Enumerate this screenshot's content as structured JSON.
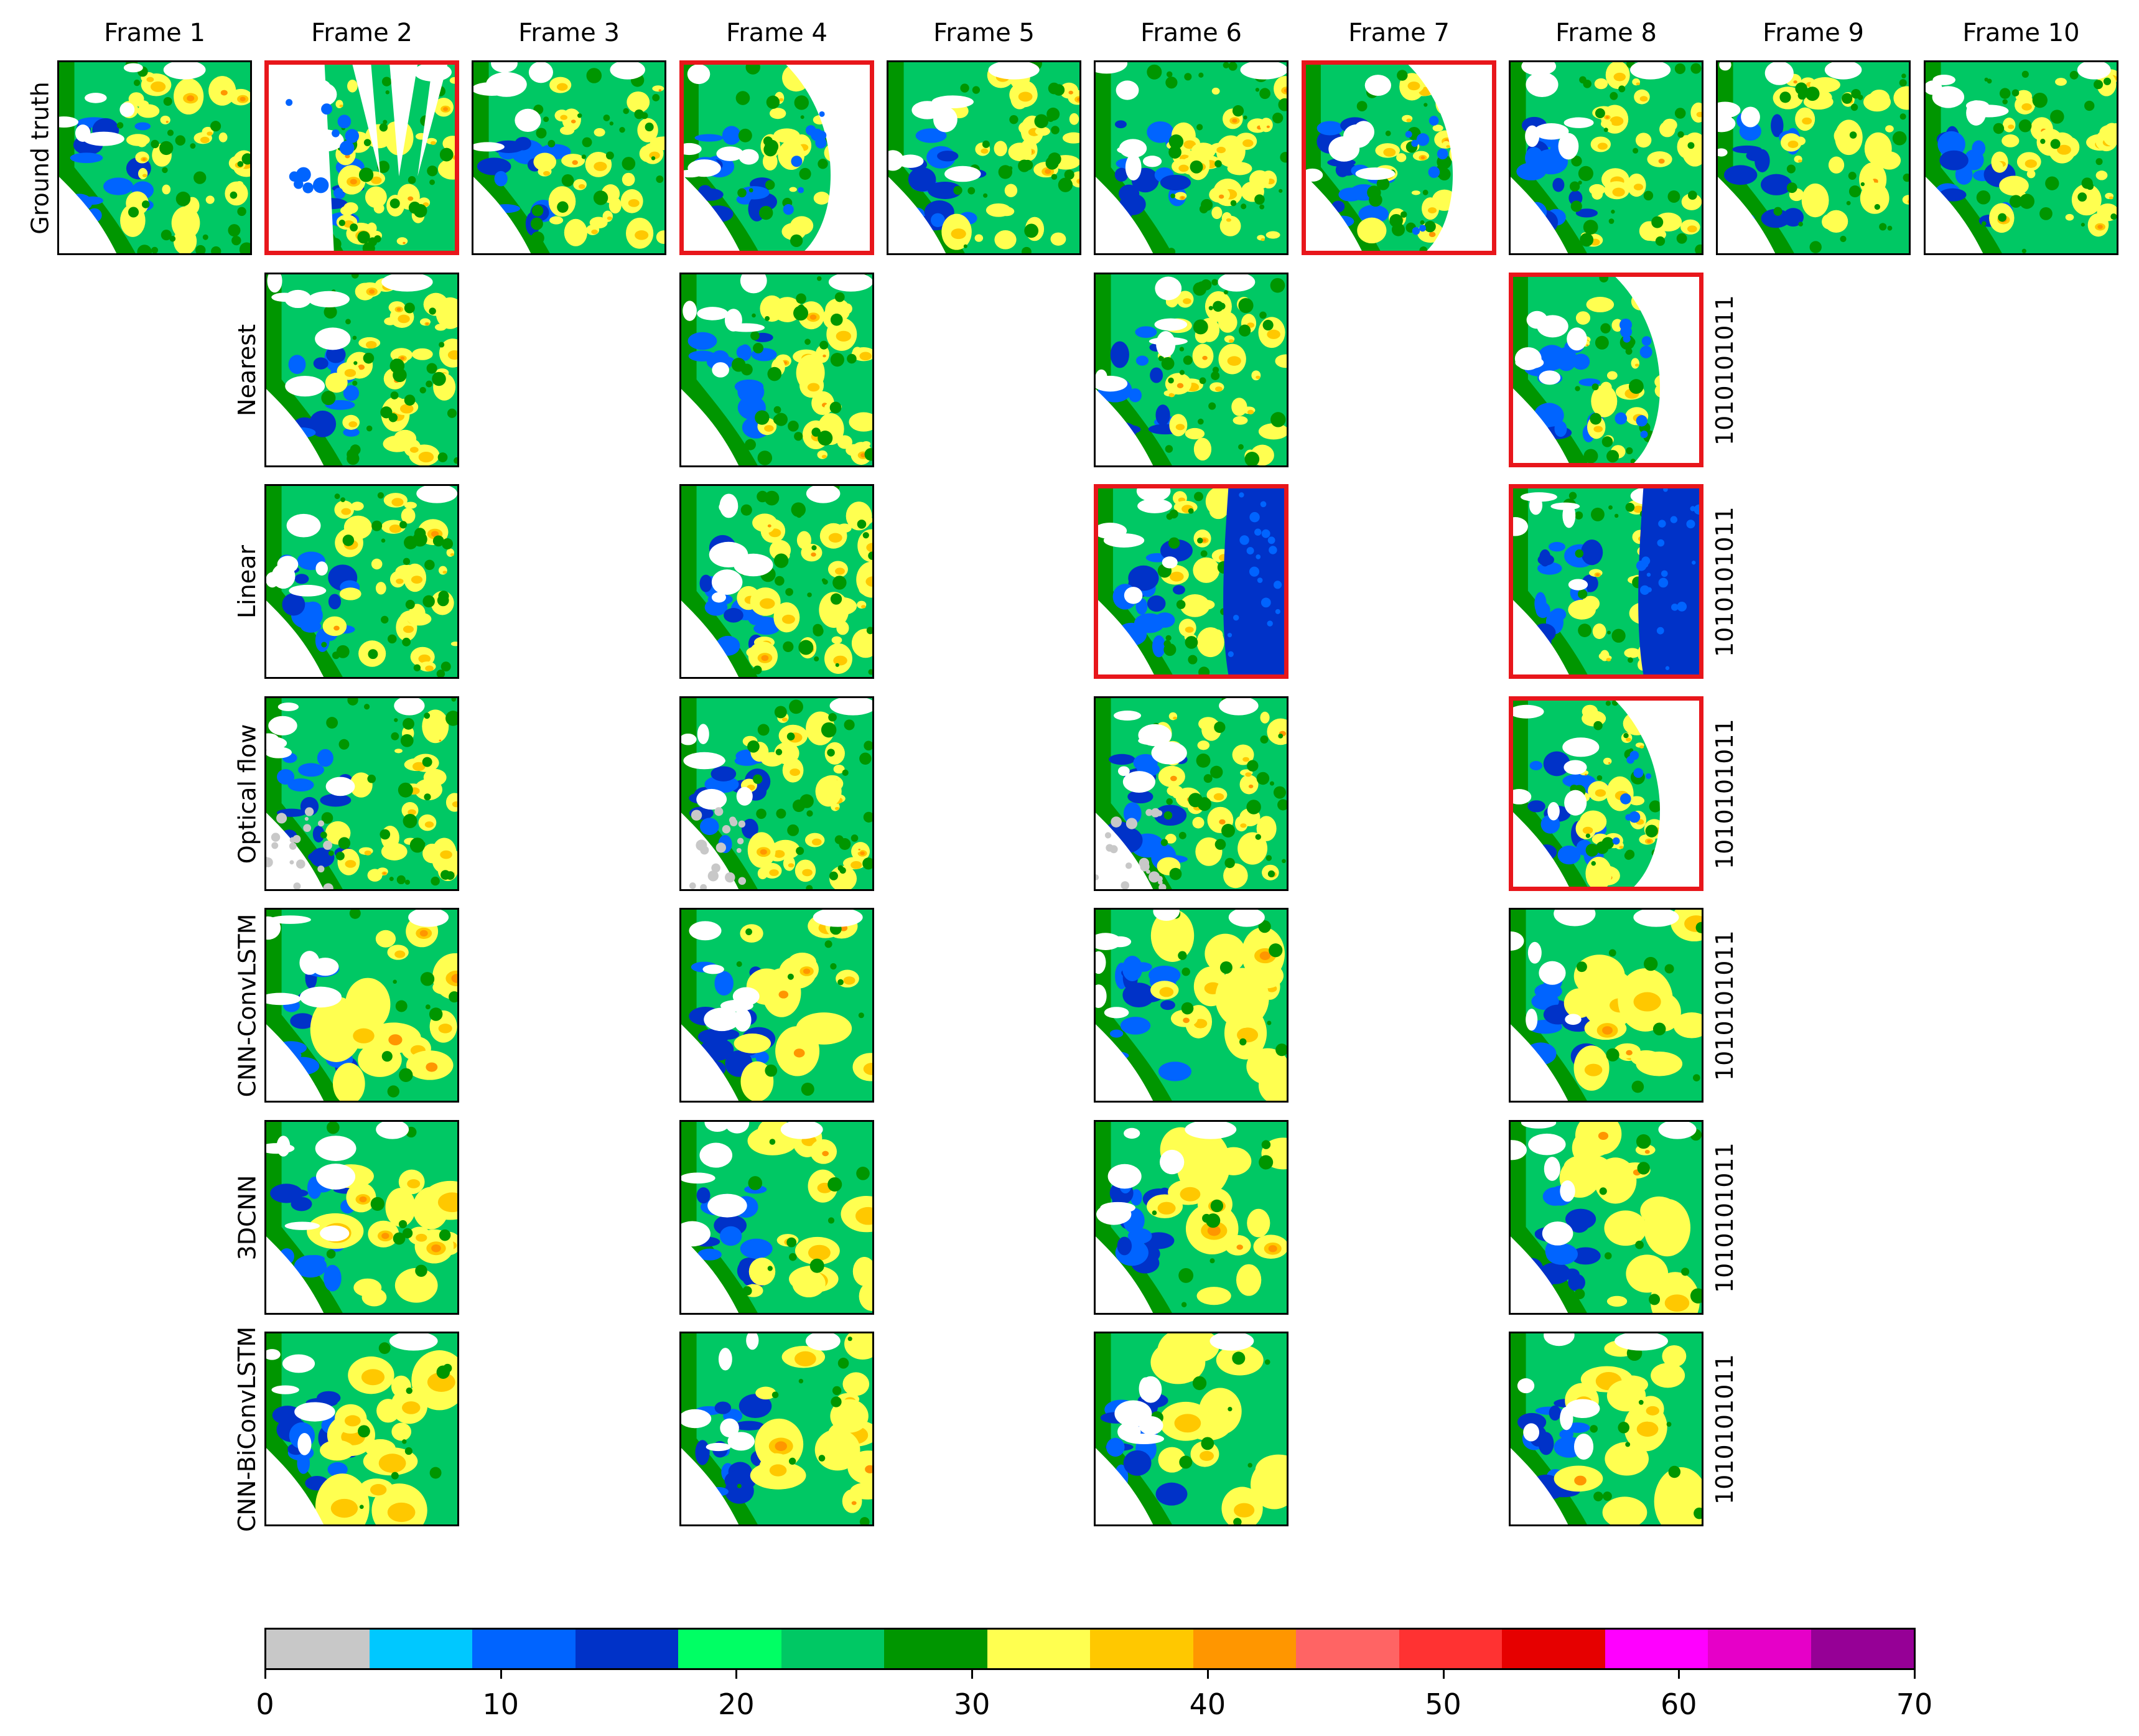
{
  "frames": [
    "Frame 1",
    "Frame 2",
    "Frame 3",
    "Frame 4",
    "Frame 5",
    "Frame 6",
    "Frame 7",
    "Frame 8",
    "Frame 9",
    "Frame 10"
  ],
  "rows": [
    {
      "label": "Ground truth",
      "frames_shown": [
        1,
        2,
        3,
        4,
        5,
        6,
        7,
        8,
        9,
        10
      ],
      "missing_frames": [
        2,
        4,
        7
      ],
      "mask_text": ""
    },
    {
      "label": "Nearest",
      "frames_shown": [
        2,
        4,
        6,
        8
      ],
      "missing_frames": [
        8
      ],
      "mask_text": "1010101011"
    },
    {
      "label": "Linear",
      "frames_shown": [
        2,
        4,
        6,
        8
      ],
      "missing_frames": [
        6,
        8
      ],
      "mask_text": "1010101011"
    },
    {
      "label": "Optical flow",
      "frames_shown": [
        2,
        4,
        6,
        8
      ],
      "missing_frames": [
        8
      ],
      "mask_text": "1010101011"
    },
    {
      "label": "CNN-ConvLSTM",
      "frames_shown": [
        2,
        4,
        6,
        8
      ],
      "missing_frames": [],
      "mask_text": "1010101011"
    },
    {
      "label": "3DCNN",
      "frames_shown": [
        2,
        4,
        6,
        8
      ],
      "missing_frames": [],
      "mask_text": "1010101011"
    },
    {
      "label": "CNN-BiConvLSTM",
      "frames_shown": [
        2,
        4,
        6,
        8
      ],
      "missing_frames": [],
      "mask_text": "1010101011"
    }
  ],
  "colorbar": {
    "colors": [
      "#c8c8c8",
      "#00c8ff",
      "#0064ff",
      "#0032c8",
      "#00ff64",
      "#00c864",
      "#009600",
      "#ffff50",
      "#ffc800",
      "#ff9600",
      "#ff6464",
      "#ff3232",
      "#e60000",
      "#ff00ff",
      "#e600c8",
      "#960096"
    ],
    "min": 0,
    "max": 70,
    "ticks": [
      "0",
      "10",
      "20",
      "30",
      "40",
      "50",
      "60",
      "70"
    ]
  },
  "chart_data": {
    "type": "heatmap",
    "colorbar_range": [
      0,
      70
    ],
    "colorbar_ticks": [
      0,
      10,
      20,
      30,
      40,
      50,
      60,
      70
    ]
  }
}
